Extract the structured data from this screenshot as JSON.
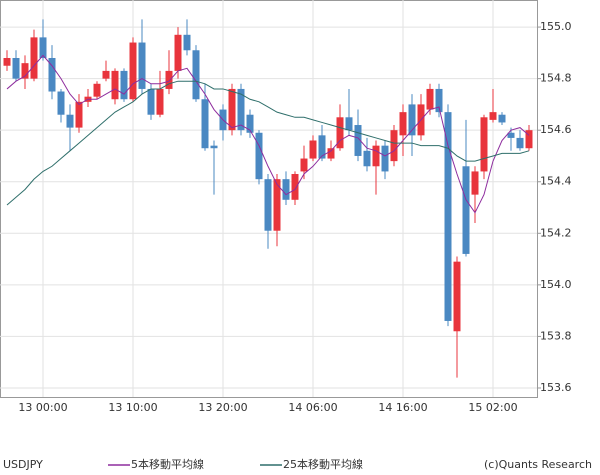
{
  "chart_data": {
    "type": "candlestick",
    "symbol": "USDJPY",
    "credit": "(c)Quants Research",
    "categories": [
      null,
      null,
      null,
      null,
      "13 00:00",
      null,
      null,
      null,
      null,
      null,
      null,
      null,
      null,
      null,
      "13 10:00",
      null,
      null,
      null,
      null,
      null,
      null,
      null,
      null,
      null,
      "13 20:00",
      null,
      null,
      null,
      null,
      null,
      null,
      null,
      null,
      null,
      "14 06:00",
      null,
      null,
      null,
      null,
      null,
      null,
      null,
      null,
      null,
      "14 16:00",
      null,
      null,
      null,
      null,
      null,
      null,
      null,
      null,
      null,
      "15 02:00",
      null,
      null,
      null,
      null
    ],
    "open": [
      154.85,
      154.88,
      154.8,
      154.8,
      154.96,
      154.88,
      154.75,
      154.66,
      154.61,
      154.71,
      154.73,
      154.8,
      154.72,
      154.83,
      154.72,
      154.94,
      154.76,
      154.66,
      154.76,
      154.83,
      154.97,
      154.91,
      154.72,
      154.54,
      154.68,
      154.6,
      154.76,
      154.66,
      154.59,
      154.41,
      154.21,
      154.41,
      154.33,
      154.44,
      154.49,
      154.58,
      154.49,
      154.53,
      154.65,
      154.62,
      154.52,
      154.46,
      154.54,
      154.48,
      154.58,
      154.7,
      154.58,
      154.68,
      154.76,
      154.67,
      153.82,
      154.46,
      154.35,
      154.44,
      154.64,
      154.66,
      154.59,
      154.57,
      154.53
    ],
    "high": [
      154.91,
      154.91,
      154.89,
      154.99,
      155.03,
      154.93,
      154.76,
      154.7,
      154.74,
      154.76,
      154.79,
      154.87,
      154.84,
      154.84,
      154.96,
      155.03,
      154.78,
      154.83,
      154.91,
      155.0,
      155.03,
      154.93,
      154.78,
      154.56,
      154.7,
      154.78,
      154.78,
      154.68,
      154.6,
      154.43,
      154.43,
      154.44,
      154.44,
      154.54,
      154.58,
      154.62,
      154.56,
      154.7,
      154.76,
      154.68,
      154.57,
      154.56,
      154.56,
      154.62,
      154.7,
      154.74,
      154.74,
      154.78,
      154.78,
      154.7,
      154.11,
      154.64,
      154.46,
      154.66,
      154.76,
      154.67,
      154.61,
      154.6,
      154.62
    ],
    "low": [
      154.83,
      154.79,
      154.76,
      154.79,
      154.87,
      154.72,
      154.63,
      154.52,
      154.59,
      154.69,
      154.72,
      154.79,
      154.7,
      154.71,
      154.71,
      154.74,
      154.64,
      154.65,
      154.74,
      154.8,
      154.89,
      154.71,
      154.52,
      154.35,
      154.56,
      154.58,
      154.58,
      154.57,
      154.39,
      154.14,
      154.15,
      154.31,
      154.31,
      154.41,
      154.48,
      154.48,
      154.48,
      154.52,
      154.58,
      154.48,
      154.44,
      154.35,
      154.41,
      154.46,
      154.5,
      154.5,
      154.56,
      154.66,
      154.65,
      153.84,
      153.64,
      154.11,
      154.24,
      154.41,
      154.63,
      154.62,
      154.52,
      154.52,
      154.52
    ],
    "close": [
      154.88,
      154.8,
      154.86,
      154.96,
      154.88,
      154.75,
      154.66,
      154.61,
      154.71,
      154.73,
      154.78,
      154.83,
      154.83,
      154.72,
      154.94,
      154.76,
      154.66,
      154.76,
      154.83,
      154.97,
      154.91,
      154.72,
      154.53,
      154.53,
      154.6,
      154.76,
      154.6,
      154.59,
      154.41,
      154.21,
      154.41,
      154.33,
      154.43,
      154.49,
      154.56,
      154.49,
      154.53,
      154.65,
      154.6,
      154.5,
      154.46,
      154.54,
      154.44,
      154.6,
      154.67,
      154.58,
      154.7,
      154.76,
      154.67,
      153.86,
      154.09,
      154.12,
      154.44,
      154.65,
      154.67,
      154.63,
      154.57,
      154.53,
      154.6
    ],
    "up_color": "#e8343c",
    "down_color": "#4a88c2",
    "series": [
      {
        "name": "5本移動平均線",
        "color": "#8e2d9e",
        "values": [
          154.76,
          154.79,
          154.81,
          154.85,
          154.89,
          154.85,
          154.8,
          154.74,
          154.7,
          154.72,
          154.72,
          154.74,
          154.76,
          154.74,
          154.78,
          154.8,
          154.78,
          154.78,
          154.79,
          154.83,
          154.84,
          154.79,
          154.74,
          154.68,
          154.64,
          154.61,
          154.62,
          154.6,
          154.54,
          154.46,
          154.39,
          154.35,
          154.37,
          154.43,
          154.46,
          154.5,
          154.52,
          154.56,
          154.58,
          154.57,
          154.53,
          154.52,
          154.5,
          154.52,
          154.56,
          154.6,
          154.64,
          154.68,
          154.69,
          154.54,
          154.43,
          154.33,
          154.28,
          154.35,
          154.48,
          154.56,
          154.6,
          154.61,
          154.58
        ]
      },
      {
        "name": "25本移動平均線",
        "color": "#2f6f6b",
        "values": [
          154.31,
          154.34,
          154.37,
          154.41,
          154.44,
          154.46,
          154.49,
          154.52,
          154.55,
          154.58,
          154.61,
          154.64,
          154.67,
          154.69,
          154.71,
          154.74,
          154.76,
          154.76,
          154.78,
          154.79,
          154.79,
          154.79,
          154.78,
          154.76,
          154.76,
          154.75,
          154.74,
          154.72,
          154.71,
          154.69,
          154.67,
          154.66,
          154.65,
          154.65,
          154.64,
          154.63,
          154.62,
          154.61,
          154.6,
          154.59,
          154.58,
          154.57,
          154.56,
          154.55,
          154.55,
          154.55,
          154.54,
          154.54,
          154.54,
          154.53,
          154.5,
          154.48,
          154.48,
          154.49,
          154.5,
          154.51,
          154.51,
          154.51,
          154.52
        ]
      }
    ],
    "ylim": [
      153.565,
      155.105
    ],
    "yticks": [
      {
        "value": 153.6,
        "label": "153.6"
      },
      {
        "value": 153.8,
        "label": "153.8"
      },
      {
        "value": 154,
        "label": "154.0"
      },
      {
        "value": 154.2,
        "label": "154.2"
      },
      {
        "value": 154.4,
        "label": "154.4"
      },
      {
        "value": 154.6,
        "label": "154.6"
      },
      {
        "value": 154.8,
        "label": "154.8"
      },
      {
        "value": 155,
        "label": "155.0"
      }
    ],
    "grid": true
  }
}
